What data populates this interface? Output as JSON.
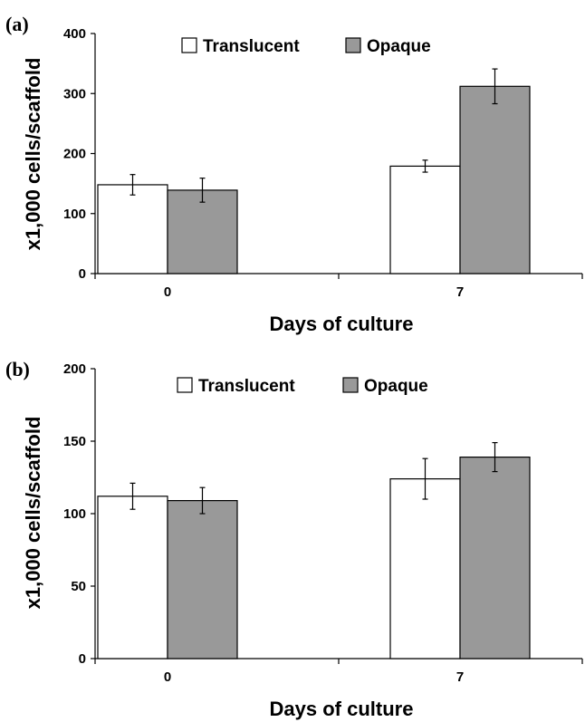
{
  "chart_data": [
    {
      "type": "bar",
      "panel_label": "(a)",
      "title": "",
      "xlabel": "Days of culture",
      "ylabel": "x1,000 cells/scaffold",
      "categories": [
        "0",
        "7"
      ],
      "ylim": [
        0,
        400
      ],
      "yticks": [
        0,
        100,
        200,
        300,
        400
      ],
      "legend_position": "top-center",
      "series": [
        {
          "name": "Translucent",
          "color": "#ffffff",
          "values": [
            148,
            179
          ],
          "errors": [
            17,
            10
          ]
        },
        {
          "name": "Opaque",
          "color": "#999999",
          "values": [
            139,
            312
          ],
          "errors": [
            20,
            29
          ]
        }
      ]
    },
    {
      "type": "bar",
      "panel_label": "(b)",
      "title": "",
      "xlabel": "Days of culture",
      "ylabel": "x1,000 cells/scaffold",
      "categories": [
        "0",
        "7"
      ],
      "ylim": [
        0,
        200
      ],
      "yticks": [
        0,
        50,
        100,
        150,
        200
      ],
      "legend_position": "top-center",
      "series": [
        {
          "name": "Translucent",
          "color": "#ffffff",
          "values": [
            112,
            124
          ],
          "errors": [
            9,
            14
          ]
        },
        {
          "name": "Opaque",
          "color": "#999999",
          "values": [
            109,
            139
          ],
          "errors": [
            9,
            10
          ]
        }
      ]
    }
  ]
}
